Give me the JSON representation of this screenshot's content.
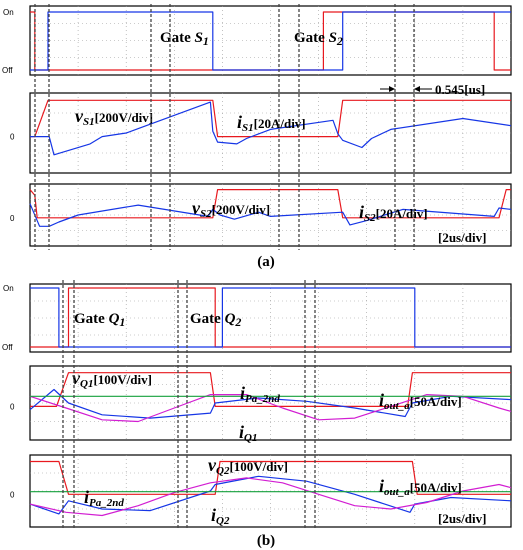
{
  "chart_data": [
    {
      "type": "line",
      "x_unit": "us",
      "x_range": [
        0,
        20
      ],
      "y_ticks": [
        "On",
        "Off"
      ],
      "ylim": [
        0,
        1
      ],
      "annotations": [
        {
          "main": "Gate ",
          "sym": "S",
          "sub": "1"
        },
        {
          "main": "Gate ",
          "sym": "S",
          "sub": "2"
        }
      ],
      "series": [
        {
          "color": "#e8191f",
          "x": [
            0,
            0.2,
            0.2,
            12.2,
            12.2,
            19.3,
            19.3,
            20
          ],
          "y": [
            1,
            1,
            0,
            0,
            1,
            1,
            0,
            0
          ]
        },
        {
          "color": "#1636e6",
          "x": [
            0,
            0.75,
            0.75,
            7.6,
            7.6,
            13.0,
            13.0,
            20
          ],
          "y": [
            0,
            0,
            1,
            1,
            0,
            0,
            1,
            1
          ]
        }
      ]
    },
    {
      "type": "line",
      "x_unit": "us",
      "x_range": [
        0,
        20
      ],
      "y_ticks": [
        "0"
      ],
      "ylim": [
        -1,
        1.2
      ],
      "annotations": [
        {
          "main": "",
          "sym": "v",
          "sub": "S1",
          "tail": "[200V/div]"
        },
        {
          "main": "",
          "sym": "i",
          "sub": "S1",
          "tail": "[20A/div]"
        }
      ],
      "series": [
        {
          "color": "#e8191f",
          "x": [
            0,
            0.2,
            0.75,
            7.6,
            7.8,
            12.8,
            13.0,
            20
          ],
          "y": [
            0,
            0,
            1,
            1,
            0,
            0,
            1,
            1
          ]
        },
        {
          "color": "#1636e6",
          "x": [
            0,
            0.8,
            1.0,
            2.5,
            3.0,
            4.0,
            7.5,
            7.6,
            7.8,
            8.6,
            9.0,
            10.0,
            12.6,
            12.8,
            13.0,
            13.8,
            14.2,
            15.0,
            18.0,
            20.0
          ],
          "y": [
            0,
            0,
            -0.5,
            -0.2,
            0.0,
            0.1,
            0.95,
            0.15,
            -0.15,
            -0.2,
            -0.05,
            0.2,
            0.45,
            0.08,
            -0.1,
            -0.3,
            -0.05,
            0.2,
            0.5,
            0.3
          ]
        }
      ]
    },
    {
      "type": "line",
      "x_unit": "us",
      "x_range": [
        0,
        20
      ],
      "y_ticks": [
        "0"
      ],
      "ylim": [
        -1,
        1.2
      ],
      "annotations": [
        {
          "main": "",
          "sym": "v",
          "sub": "S2",
          "tail": "[200V/div]"
        },
        {
          "main": "",
          "sym": "i",
          "sub": "S2",
          "tail": "[20A/div]"
        },
        {
          "main": "[2us/div]"
        }
      ],
      "series": [
        {
          "color": "#e8191f",
          "x": [
            0,
            0.2,
            0.3,
            7.6,
            7.8,
            12.8,
            13.0,
            19.5,
            19.8,
            20
          ],
          "y": [
            1,
            0.8,
            0,
            0,
            1,
            1,
            0,
            0,
            1,
            1
          ]
        },
        {
          "color": "#1636e6",
          "x": [
            0,
            0.4,
            0.8,
            1.2,
            2.0,
            4.5,
            7.4,
            7.6,
            7.9,
            8.5,
            9.5,
            10.0,
            13.0,
            13.3,
            14.0,
            15.5,
            19.3,
            19.5,
            20.0
          ],
          "y": [
            0.5,
            -0.3,
            -0.3,
            -0.15,
            0.1,
            0.45,
            0.05,
            0.3,
            0.1,
            -0.05,
            0.2,
            0.05,
            0.2,
            -0.25,
            -0.1,
            0.3,
            0.05,
            0.35,
            0.3
          ]
        }
      ]
    },
    {
      "type": "line",
      "x_unit": "us",
      "x_range": [
        0,
        20
      ],
      "y_ticks": [
        "On",
        "Off"
      ],
      "ylim": [
        0,
        1
      ],
      "annotations": [
        {
          "main": "Gate ",
          "sym": "Q",
          "sub": "1"
        },
        {
          "main": "Gate ",
          "sym": "Q",
          "sub": "2"
        }
      ],
      "series": [
        {
          "color": "#e8191f",
          "x": [
            0,
            1.6,
            1.6,
            7.7,
            7.7,
            20
          ],
          "y": [
            0,
            0,
            1,
            1,
            0,
            0
          ]
        },
        {
          "color": "#1636e6",
          "x": [
            0,
            1.2,
            1.2,
            8.0,
            8.0,
            16.0,
            16.0,
            20
          ],
          "y": [
            1,
            1,
            0,
            0,
            1,
            1,
            0,
            0
          ]
        }
      ]
    },
    {
      "type": "line",
      "x_unit": "us",
      "x_range": [
        0,
        20
      ],
      "y_ticks": [
        "0"
      ],
      "ylim": [
        -1,
        1.2
      ],
      "annotations": [
        {
          "main": "",
          "sym": "v",
          "sub": "Q1",
          "tail": "[100V/div]"
        },
        {
          "main": "",
          "sym": "i",
          "sub": "Pa_2nd"
        },
        {
          "main": "",
          "sym": "i",
          "sub": "out_a",
          "tail": "[50A/div]"
        },
        {
          "main": "",
          "sym": "i",
          "sub": "Q1"
        }
      ],
      "series": [
        {
          "color": "#e8191f",
          "x": [
            0,
            1.1,
            1.6,
            7.5,
            7.7,
            15.7,
            15.9,
            20
          ],
          "y": [
            0,
            0,
            1,
            1,
            0,
            0,
            1,
            1
          ]
        },
        {
          "color": "#1636e6",
          "x": [
            0,
            1.0,
            1.6,
            3.0,
            5.0,
            7.5,
            7.7,
            9.5,
            11.5,
            13.5,
            15.6,
            15.9,
            17.5,
            20
          ],
          "y": [
            -0.1,
            0.5,
            0.1,
            -0.25,
            -0.35,
            -0.2,
            0.1,
            0.25,
            0.15,
            -0.05,
            -0.3,
            0.1,
            0.3,
            0.2
          ]
        },
        {
          "color": "#d21ed2",
          "x": [
            0,
            1.5,
            3.0,
            4.5,
            6.0,
            7.5,
            9.0,
            10.5,
            12.0,
            13.5,
            15.0,
            16.5,
            18.0,
            19.5,
            20
          ],
          "y": [
            0.3,
            -0.05,
            -0.4,
            -0.45,
            -0.05,
            0.35,
            0.35,
            -0.05,
            -0.4,
            -0.35,
            0.0,
            0.35,
            0.3,
            -0.05,
            -0.15
          ]
        },
        {
          "color": "#14a03c",
          "x": [
            0,
            20
          ],
          "y": [
            0.3,
            0.3
          ]
        }
      ]
    },
    {
      "type": "line",
      "x_unit": "us",
      "x_range": [
        0,
        20
      ],
      "y_ticks": [
        "0"
      ],
      "ylim": [
        -1,
        1.2
      ],
      "annotations": [
        {
          "main": "",
          "sym": "v",
          "sub": "Q2",
          "tail": "[100V/div]"
        },
        {
          "main": "",
          "sym": "i",
          "sub": "Pa_2nd"
        },
        {
          "main": "",
          "sym": "i",
          "sub": "Q2"
        },
        {
          "main": "",
          "sym": "i",
          "sub": "out_a",
          "tail": "[50A/div]"
        },
        {
          "main": "[2us/div]"
        }
      ],
      "series": [
        {
          "color": "#e8191f",
          "x": [
            0,
            1.2,
            1.6,
            7.7,
            7.9,
            15.9,
            16.1,
            20
          ],
          "y": [
            1,
            1,
            0,
            0,
            1,
            1,
            0,
            0
          ]
        },
        {
          "color": "#1636e6",
          "x": [
            0,
            1.2,
            1.6,
            3.0,
            5.0,
            7.5,
            7.7,
            9.5,
            11.5,
            13.5,
            15.8,
            16.0,
            17.5,
            20
          ],
          "y": [
            -0.3,
            -0.6,
            -0.2,
            -0.45,
            -0.5,
            0.1,
            0.3,
            0.55,
            0.4,
            0.0,
            -0.55,
            -0.3,
            -0.1,
            -0.2
          ]
        },
        {
          "color": "#d21ed2",
          "x": [
            0,
            1.5,
            3.0,
            4.5,
            6.0,
            7.5,
            9.0,
            10.5,
            12.0,
            13.5,
            15.0,
            16.5,
            18.0,
            19.5,
            20
          ],
          "y": [
            -0.3,
            -0.55,
            -0.65,
            -0.35,
            0.05,
            0.35,
            0.5,
            0.35,
            0.0,
            -0.35,
            -0.45,
            -0.25,
            0.1,
            0.3,
            0.2
          ]
        },
        {
          "color": "#14a03c",
          "x": [
            0,
            20
          ],
          "y": [
            0.08,
            0.08
          ]
        }
      ]
    }
  ],
  "time_marker": "0.545[us]",
  "captions": [
    "(a)",
    "(b)"
  ]
}
